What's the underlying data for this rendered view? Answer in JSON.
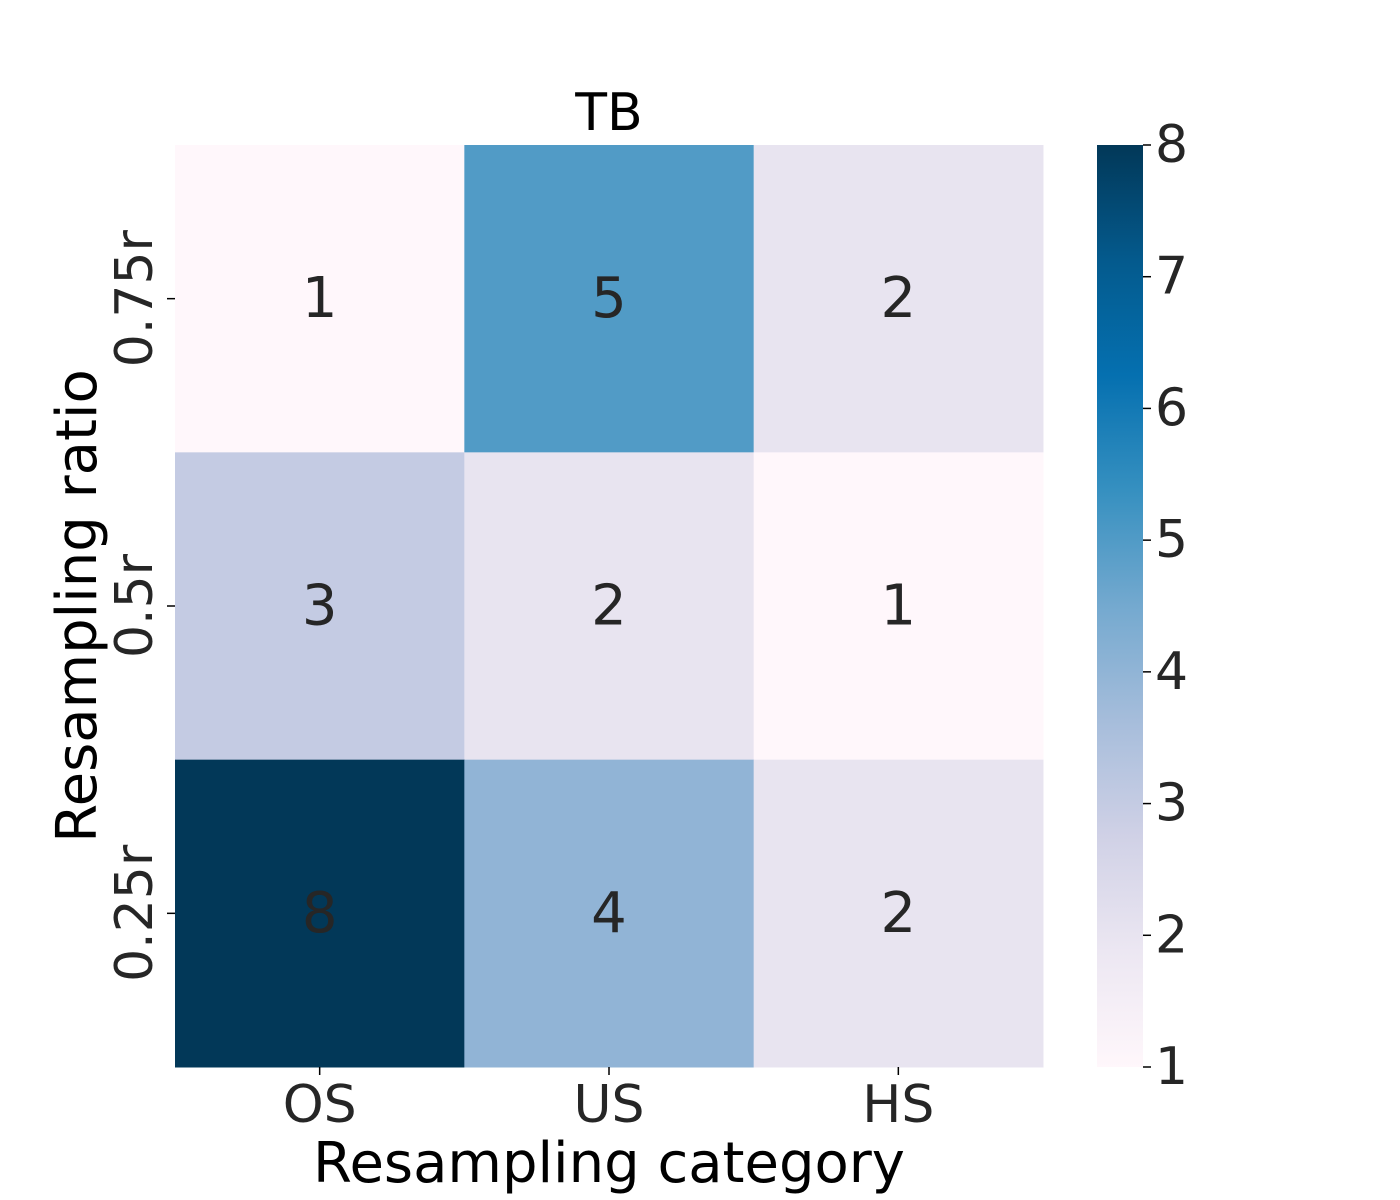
{
  "chart_data": {
    "type": "heatmap",
    "title": "TB",
    "xlabel": "Resampling category",
    "ylabel": "Resampling ratio",
    "x_categories": [
      "OS",
      "US",
      "HS"
    ],
    "y_categories": [
      "0.75r",
      "0.5r",
      "0.25r"
    ],
    "values": [
      [
        1,
        5,
        2
      ],
      [
        3,
        2,
        1
      ],
      [
        8,
        4,
        2
      ]
    ],
    "annotate": true,
    "colormap": "PuBu",
    "colorbar": {
      "min": 1,
      "max": 8,
      "ticks": [
        1,
        2,
        3,
        4,
        5,
        6,
        7,
        8
      ]
    },
    "grid": false
  }
}
